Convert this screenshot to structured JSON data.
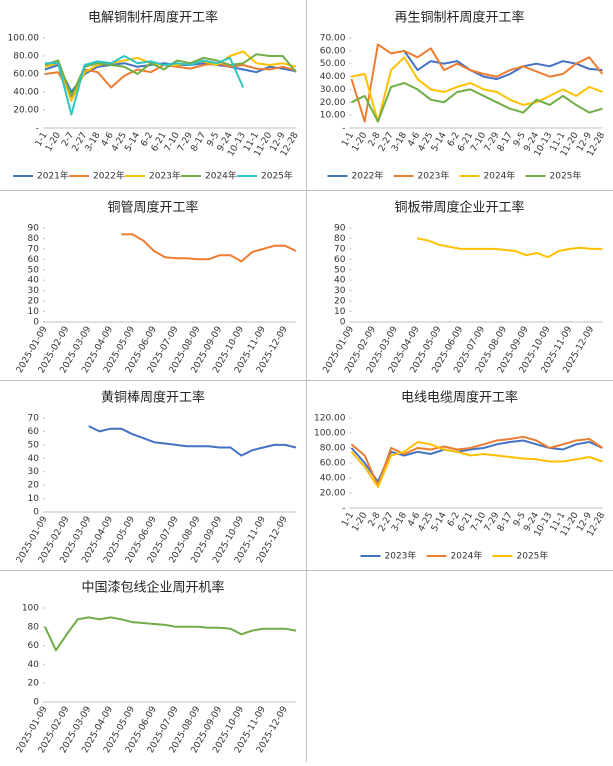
{
  "chart_data": [
    {
      "type": "line",
      "title": "电解铜制杆周度开工率",
      "categories": [
        "1-1",
        "1-20",
        "2-7",
        "2-27",
        "3-18",
        "4-6",
        "4-25",
        "5-14",
        "6-2",
        "6-21",
        "7-10",
        "7-29",
        "8-17",
        "9-5",
        "9-24",
        "10-13",
        "11-1",
        "11-20",
        "12-9",
        "12-28"
      ],
      "series": [
        {
          "name": "2021年",
          "color": "#4472c4",
          "values": [
            65,
            70,
            40,
            60,
            68,
            70,
            72,
            68,
            70,
            72,
            70,
            70,
            72,
            70,
            68,
            65,
            62,
            68,
            66,
            63
          ]
        },
        {
          "name": "2022年",
          "color": "#ed7d31",
          "values": [
            60,
            62,
            35,
            65,
            62,
            45,
            58,
            65,
            62,
            70,
            68,
            66,
            70,
            72,
            68,
            70,
            66,
            65,
            68,
            64
          ]
        },
        {
          "name": "2023年",
          "color": "#ffc000",
          "values": [
            68,
            72,
            30,
            62,
            70,
            72,
            75,
            78,
            72,
            70,
            70,
            72,
            74,
            70,
            80,
            85,
            72,
            70,
            72,
            68
          ]
        },
        {
          "name": "2024年",
          "color": "#70ad47",
          "values": [
            70,
            75,
            35,
            68,
            72,
            70,
            68,
            60,
            72,
            65,
            75,
            72,
            78,
            75,
            70,
            72,
            82,
            80,
            80,
            62
          ]
        },
        {
          "name": "2025年",
          "color": "#2ec4c6",
          "values": [
            72,
            72,
            15,
            70,
            74,
            72,
            80,
            72,
            74,
            70,
            72,
            70,
            75,
            72,
            78,
            45,
            null,
            null,
            null,
            null
          ]
        }
      ],
      "ylim": [
        0,
        100
      ],
      "yticks": [
        {
          "value": 0,
          "label": "-"
        },
        {
          "value": 20,
          "label": "20.00"
        },
        {
          "value": 40,
          "label": "40.00"
        },
        {
          "value": 60,
          "label": "60.00"
        },
        {
          "value": 80,
          "label": "80.00"
        },
        {
          "value": 100,
          "label": "100.00"
        }
      ],
      "legend": "bottom"
    },
    {
      "type": "line",
      "title": "再生铜制杆周度开工率",
      "categories": [
        "1-1",
        "1-20",
        "2-8",
        "2-27",
        "3-18",
        "4-6",
        "4-25",
        "5-14",
        "6-2",
        "6-21",
        "7-10",
        "7-29",
        "8-17",
        "9-5",
        "9-24",
        "10-13",
        "11-1",
        "11-20",
        "12-9",
        "12-28"
      ],
      "series": [
        {
          "name": "2022年",
          "color": "#4472c4",
          "values": [
            null,
            null,
            null,
            null,
            60,
            45,
            52,
            50,
            52,
            45,
            40,
            38,
            42,
            48,
            50,
            48,
            52,
            50,
            46,
            45
          ]
        },
        {
          "name": "2023年",
          "color": "#ed7d31",
          "values": [
            38,
            5,
            65,
            58,
            60,
            55,
            62,
            45,
            50,
            45,
            42,
            40,
            45,
            48,
            44,
            40,
            42,
            50,
            55,
            42
          ]
        },
        {
          "name": "2024年",
          "color": "#ffc000",
          "values": [
            40,
            42,
            5,
            45,
            55,
            38,
            30,
            28,
            32,
            35,
            30,
            28,
            22,
            18,
            20,
            25,
            30,
            25,
            32,
            28
          ]
        },
        {
          "name": "2025年",
          "color": "#70ad47",
          "values": [
            20,
            25,
            5,
            32,
            35,
            30,
            22,
            20,
            28,
            30,
            25,
            20,
            15,
            12,
            22,
            18,
            25,
            18,
            12,
            15
          ]
        }
      ],
      "ylim": [
        0,
        70
      ],
      "yticks": [
        {
          "value": 0,
          "label": "-"
        },
        {
          "value": 10,
          "label": "10.00"
        },
        {
          "value": 20,
          "label": "20.00"
        },
        {
          "value": 30,
          "label": "30.00"
        },
        {
          "value": 40,
          "label": "40.00"
        },
        {
          "value": 50,
          "label": "50.00"
        },
        {
          "value": 60,
          "label": "60.00"
        },
        {
          "value": 70,
          "label": "70.00"
        }
      ],
      "legend": "bottom"
    },
    {
      "type": "line",
      "title": "铜管周度开工率",
      "categories": [
        "2025-01-09",
        null,
        "2025-02-09",
        null,
        "2025-03-09",
        null,
        "2025-04-09",
        null,
        "2025-05-09",
        null,
        "2025-06-09",
        null,
        "2025-07-09",
        null,
        "2025-08-09",
        null,
        "2025-09-09",
        null,
        "2025-10-09",
        null,
        "2025-11-09",
        null,
        "2025-12-09",
        null
      ],
      "values": [
        null,
        null,
        null,
        null,
        null,
        null,
        null,
        84,
        84,
        78,
        68,
        62,
        61,
        61,
        60,
        60,
        64,
        64,
        58,
        67,
        70,
        73,
        73,
        68
      ],
      "color": "#ed7d31",
      "ylim": [
        0,
        90
      ],
      "yticks": [
        0,
        10,
        20,
        30,
        40,
        50,
        60,
        70,
        80,
        90
      ]
    },
    {
      "type": "line",
      "title": "铜板带周度企业开工率",
      "categories": [
        "2025-01-09",
        null,
        "2025-02-09",
        null,
        "2025-03-09",
        null,
        "2025-04-09",
        null,
        "2025-05-09",
        null,
        "2025-06-09",
        null,
        "2025-07-09",
        null,
        "2025-08-09",
        null,
        "2025-09-09",
        null,
        "2025-10-09",
        null,
        "2025-11-09",
        null,
        "2025-12-09",
        null
      ],
      "values": [
        null,
        null,
        null,
        null,
        null,
        null,
        80,
        78,
        74,
        72,
        70,
        70,
        70,
        70,
        69,
        68,
        64,
        66,
        62,
        68,
        70,
        71,
        70,
        70
      ],
      "color": "#ffc000",
      "ylim": [
        0,
        90
      ],
      "yticks": [
        0,
        10,
        20,
        30,
        40,
        50,
        60,
        70,
        80,
        90
      ]
    },
    {
      "type": "line",
      "title": "黄铜棒周度开工率",
      "categories": [
        "2025-01-09",
        null,
        "2025-02-09",
        null,
        "2025-03-09",
        null,
        "2025-04-09",
        null,
        "2025-05-09",
        null,
        "2025-06-09",
        null,
        "2025-07-09",
        null,
        "2025-08-09",
        null,
        "2025-09-09",
        null,
        "2025-10-09",
        null,
        "2025-11-09",
        null,
        "2025-12-09",
        null
      ],
      "values": [
        null,
        null,
        null,
        null,
        64,
        60,
        62,
        62,
        58,
        55,
        52,
        51,
        50,
        49,
        49,
        49,
        48,
        48,
        42,
        46,
        48,
        50,
        50,
        48
      ],
      "color": "#4472c4",
      "ylim": [
        0,
        70
      ],
      "yticks": [
        0,
        10,
        20,
        30,
        40,
        50,
        60,
        70
      ]
    },
    {
      "type": "line",
      "title": "电线电缆周度开工率",
      "categories": [
        "1-1",
        "1-20",
        "2-8",
        "2-27",
        "3-18",
        "4-6",
        "4-25",
        "5-14",
        "6-2",
        "6-21",
        "7-10",
        "7-29",
        "8-17",
        "9-5",
        "9-24",
        "10-13",
        "11-1",
        "11-20",
        "12-9",
        "12-28"
      ],
      "series": [
        {
          "name": "2023年",
          "color": "#4472c4",
          "values": [
            80,
            60,
            35,
            75,
            70,
            75,
            72,
            78,
            75,
            78,
            80,
            85,
            88,
            90,
            85,
            80,
            78,
            85,
            88,
            80
          ]
        },
        {
          "name": "2024年",
          "color": "#ed7d31",
          "values": [
            85,
            70,
            30,
            80,
            72,
            80,
            78,
            82,
            78,
            80,
            85,
            90,
            92,
            95,
            90,
            80,
            85,
            90,
            92,
            80
          ]
        },
        {
          "name": "2025年",
          "color": "#ffc000",
          "values": [
            75,
            55,
            28,
            70,
            75,
            88,
            85,
            78,
            75,
            70,
            72,
            70,
            68,
            66,
            65,
            62,
            62,
            65,
            68,
            62
          ]
        }
      ],
      "ylim": [
        0,
        120
      ],
      "yticks": [
        {
          "value": 0,
          "label": "-"
        },
        {
          "value": 20,
          "label": "20.00"
        },
        {
          "value": 40,
          "label": "40.00"
        },
        {
          "value": 60,
          "label": "60.00"
        },
        {
          "value": 80,
          "label": "80.00"
        },
        {
          "value": 100,
          "label": "100.00"
        },
        {
          "value": 120,
          "label": "120.00"
        }
      ],
      "legend": "bottom"
    },
    {
      "type": "line",
      "title": "中国漆包线企业周开机率",
      "categories": [
        "2025-01-09",
        null,
        "2025-02-09",
        null,
        "2025-03-09",
        null,
        "2025-04-09",
        null,
        "2025-05-09",
        null,
        "2025-06-09",
        null,
        "2025-07-09",
        null,
        "2025-08-09",
        null,
        "2025-09-09",
        null,
        "2025-10-09",
        null,
        "2025-11-09",
        null,
        "2025-12-09",
        null
      ],
      "values": [
        80,
        55,
        72,
        88,
        90,
        88,
        90,
        88,
        85,
        84,
        83,
        82,
        80,
        80,
        80,
        79,
        79,
        78,
        72,
        76,
        78,
        78,
        78,
        76
      ],
      "color": "#70ad47",
      "ylim": [
        0,
        100
      ],
      "yticks": [
        0,
        20,
        40,
        60,
        80,
        100
      ]
    }
  ]
}
